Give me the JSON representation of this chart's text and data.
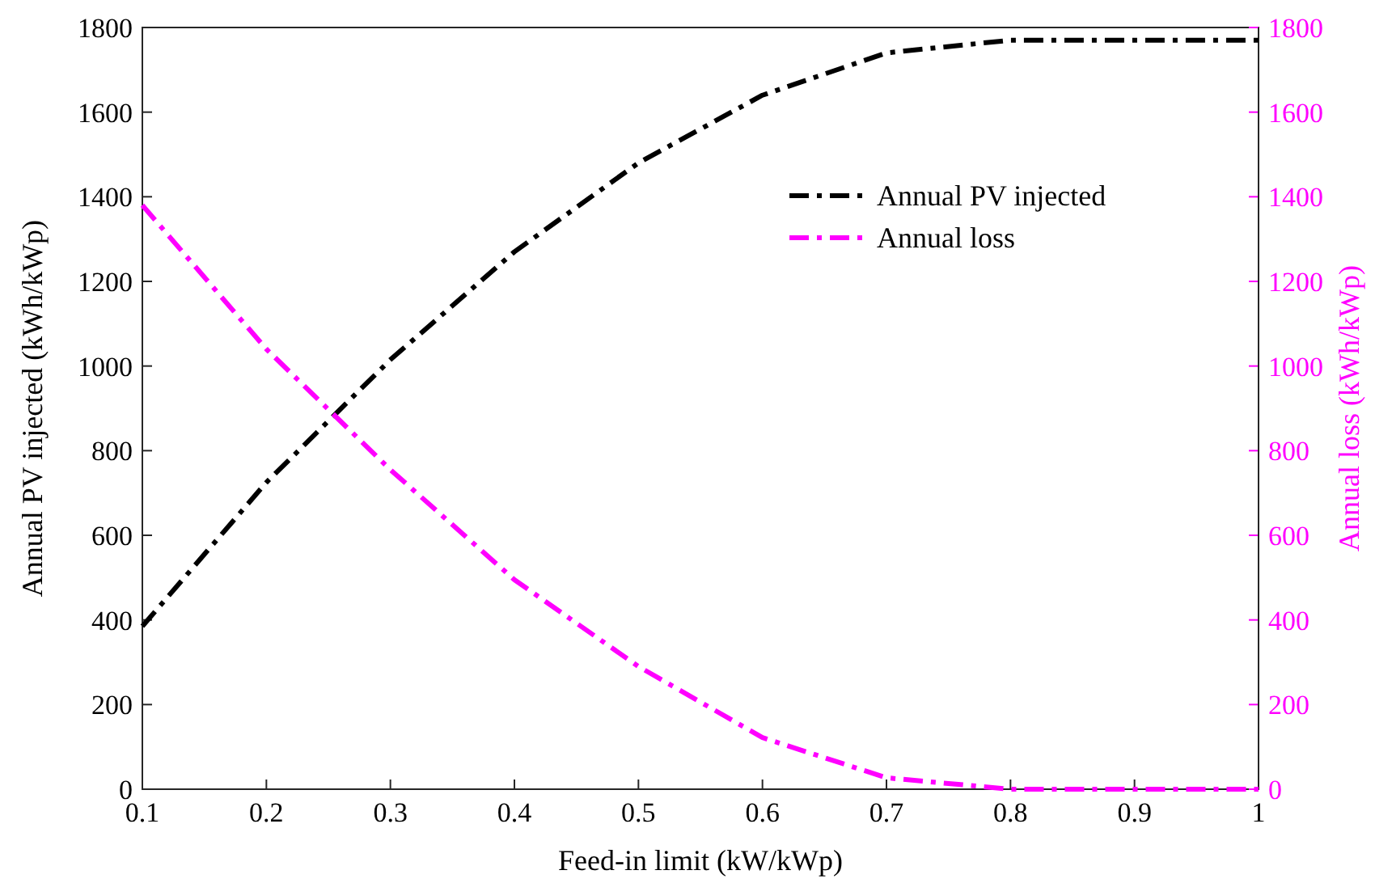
{
  "chart_data": {
    "type": "line",
    "xlabel": "Feed-in limit (kW/kWp)",
    "ylabel": "Annual PV injected (kWh/kWp)",
    "y2label": "Annual loss (kWh/kWp)",
    "x": [
      0.1,
      0.2,
      0.3,
      0.4,
      0.5,
      0.6,
      0.7,
      0.8,
      0.9,
      1
    ],
    "series": [
      {
        "name": "Annual PV injected",
        "color": "#000000",
        "values": [
          385,
          725,
          1015,
          1270,
          1480,
          1640,
          1740,
          1770,
          1770,
          1770
        ]
      },
      {
        "name": "Annual loss",
        "color": "#ff00ff",
        "axis": "y2",
        "values": [
          1380,
          1040,
          755,
          495,
          290,
          122,
          27,
          0,
          0,
          0
        ]
      }
    ],
    "xlim": [
      0.1,
      1
    ],
    "xticks": [
      0.1,
      0.2,
      0.3,
      0.4,
      0.5,
      0.6,
      0.7,
      0.8,
      0.9,
      1
    ],
    "ylim": [
      0,
      1800
    ],
    "yticks": [
      0,
      200,
      400,
      600,
      800,
      1000,
      1200,
      1400,
      1600,
      1800
    ],
    "y2lim": [
      0,
      1800
    ],
    "y2ticks": [
      0,
      200,
      400,
      600,
      800,
      1000,
      1200,
      1400,
      1600,
      1800
    ],
    "grid": false,
    "legend": "top right",
    "line_style": "dashdot",
    "marker": "none"
  }
}
